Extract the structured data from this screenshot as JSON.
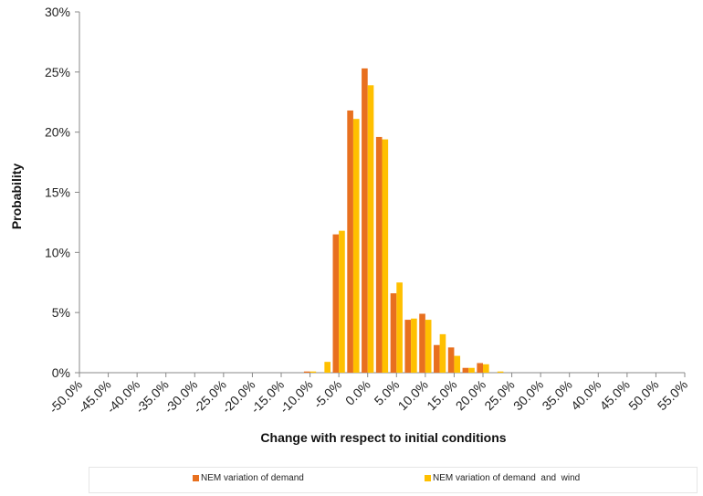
{
  "chart_data": {
    "type": "bar",
    "xlabel": "Change with respect to initial conditions",
    "ylabel": "Probability",
    "ylim": [
      0,
      30
    ],
    "y_ticks": [
      "0%",
      "5%",
      "10%",
      "15%",
      "20%",
      "25%",
      "30%"
    ],
    "categories": [
      "-50.0%",
      "-45.0%",
      "-40.0%",
      "-35.0%",
      "-30.0%",
      "-25.0%",
      "-20.0%",
      "-15.0%",
      "-10.0%",
      "-5.0%",
      "0.0%",
      "5.0%",
      "10.0%",
      "15.0%",
      "20.0%",
      "25.0%",
      "30.0%",
      "35.0%",
      "40.0%",
      "45.0%",
      "50.0%",
      "55.0%"
    ],
    "bins": [
      -10.0,
      -7.5,
      -5.0,
      -2.5,
      0.0,
      2.5,
      5.0,
      7.5,
      10.0,
      12.5,
      15.0,
      17.5,
      20.0,
      22.5,
      25.0
    ],
    "series": [
      {
        "name": "NEM variation of demand",
        "color": "#E8701F",
        "values": [
          0.1,
          0.0,
          11.5,
          21.8,
          25.3,
          19.6,
          6.6,
          4.4,
          4.9,
          2.3,
          2.1,
          0.4,
          0.8,
          0.0,
          0.0
        ]
      },
      {
        "name": "NEM variation of demand  and  wind",
        "color": "#FFC000",
        "values": [
          0.1,
          0.9,
          11.8,
          21.1,
          23.9,
          19.4,
          7.5,
          4.5,
          4.4,
          3.2,
          1.4,
          0.4,
          0.7,
          0.1,
          0.0
        ]
      }
    ],
    "grid": false,
    "legend_position": "bottom"
  }
}
